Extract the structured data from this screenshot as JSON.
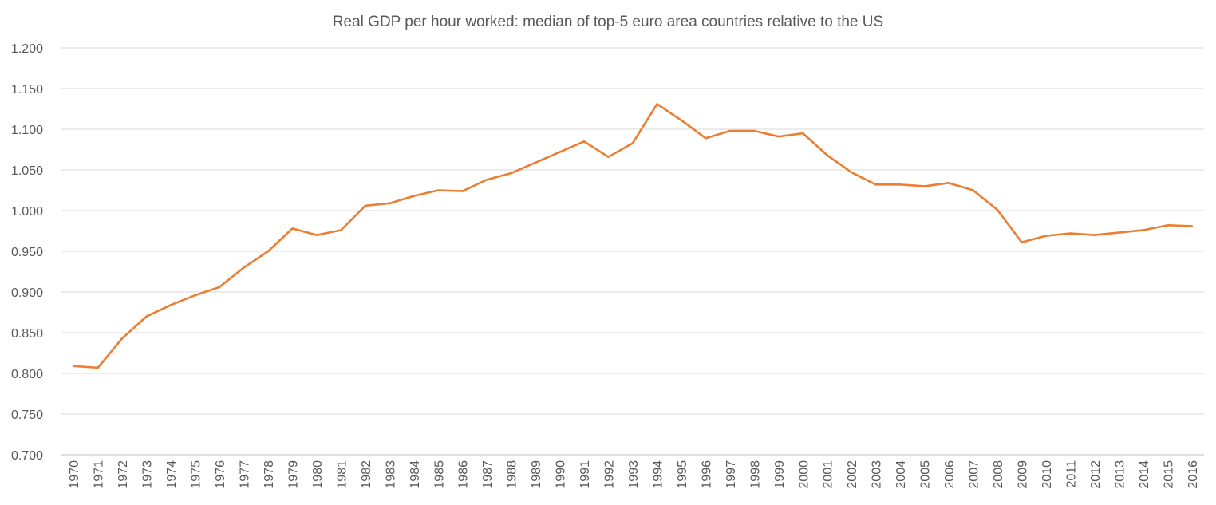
{
  "chart_data": {
    "type": "line",
    "title": "Real GDP per hour worked: median of top-5 euro area countries relative to the US",
    "xlabel": "",
    "ylabel": "",
    "ylim": [
      0.7,
      1.2
    ],
    "y_ticks": [
      "0.700",
      "0.750",
      "0.800",
      "0.850",
      "0.900",
      "0.950",
      "1.000",
      "1.050",
      "1.100",
      "1.150",
      "1.200"
    ],
    "y_tick_values": [
      0.7,
      0.75,
      0.8,
      0.85,
      0.9,
      0.95,
      1.0,
      1.05,
      1.1,
      1.15,
      1.2
    ],
    "grid": true,
    "legend": "none",
    "categories": [
      "1970",
      "1971",
      "1972",
      "1973",
      "1974",
      "1975",
      "1976",
      "1977",
      "1978",
      "1979",
      "1980",
      "1981",
      "1982",
      "1983",
      "1984",
      "1985",
      "1986",
      "1987",
      "1988",
      "1989",
      "1990",
      "1991",
      "1992",
      "1993",
      "1994",
      "1995",
      "1996",
      "1997",
      "1998",
      "1999",
      "2000",
      "2001",
      "2002",
      "2003",
      "2004",
      "2005",
      "2006",
      "2007",
      "2008",
      "2009",
      "2010",
      "2011",
      "2012",
      "2013",
      "2014",
      "2015",
      "2016"
    ],
    "series": [
      {
        "name": "Median of top-5 euro area countries relative to the US",
        "color": "#ED7D31",
        "values": [
          0.809,
          0.807,
          0.843,
          0.87,
          0.884,
          0.896,
          0.906,
          0.93,
          0.95,
          0.978,
          0.97,
          0.976,
          1.006,
          1.009,
          1.018,
          1.025,
          1.024,
          1.038,
          1.046,
          1.059,
          1.072,
          1.085,
          1.066,
          1.083,
          1.131,
          1.111,
          1.089,
          1.098,
          1.098,
          1.091,
          1.095,
          1.068,
          1.047,
          1.032,
          1.032,
          1.03,
          1.034,
          1.025,
          1.001,
          0.961,
          0.969,
          0.972,
          0.97,
          0.973,
          0.976,
          0.982,
          0.981
        ]
      }
    ]
  }
}
